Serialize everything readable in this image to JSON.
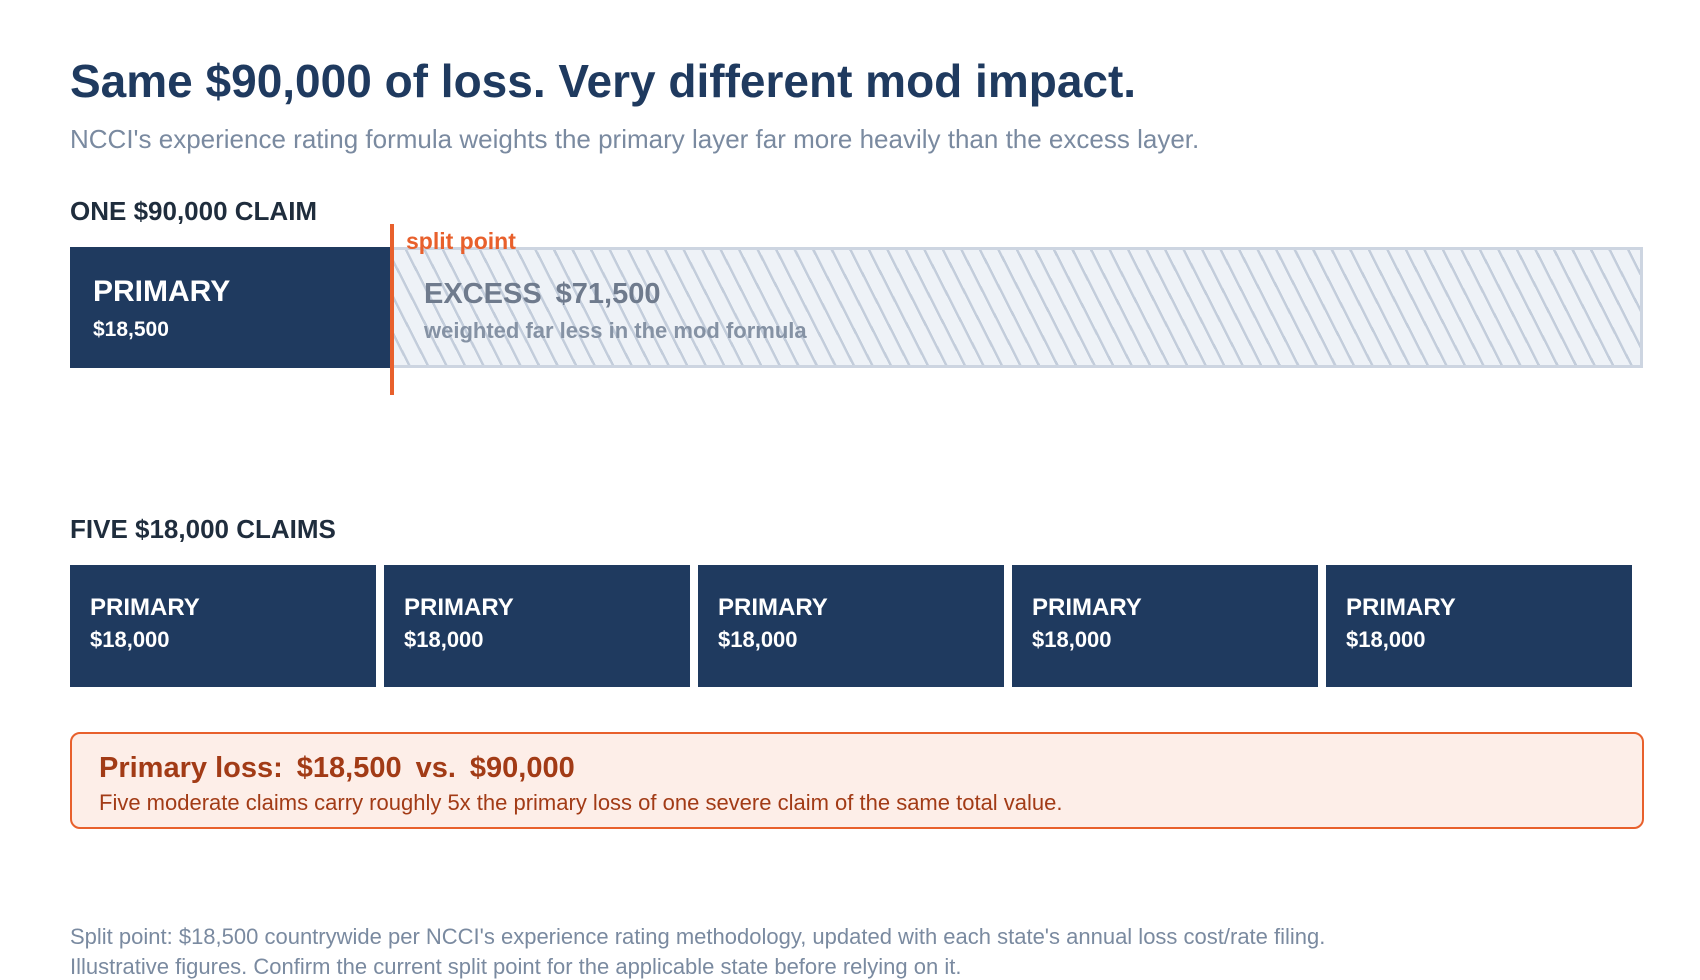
{
  "header": {
    "title": "Same $90,000 of loss. Very different mod impact.",
    "subtitle": "NCCI's experience rating formula weights the primary layer far more heavily than the excess layer."
  },
  "single_claim": {
    "section_label": "ONE $90,000 CLAIM",
    "primary": {
      "label": "PRIMARY",
      "amount": "$18,500",
      "value": 18500
    },
    "excess": {
      "label": "EXCESS",
      "amount": "$71,500",
      "value": 71500,
      "note": "weighted far less in the mod formula"
    },
    "split_label": "split point"
  },
  "five_claims": {
    "section_label": "FIVE $18,000 CLAIMS",
    "claims": [
      {
        "label": "PRIMARY",
        "amount": "$18,000"
      },
      {
        "label": "PRIMARY",
        "amount": "$18,000"
      },
      {
        "label": "PRIMARY",
        "amount": "$18,000"
      },
      {
        "label": "PRIMARY",
        "amount": "$18,000"
      },
      {
        "label": "PRIMARY",
        "amount": "$18,000"
      }
    ]
  },
  "callout": {
    "prefix": "Primary loss:",
    "value_a": "$18,500",
    "vs": "vs.",
    "value_b": "$90,000",
    "body": "Five moderate claims carry roughly 5x the primary loss of one severe claim of the same total value."
  },
  "footnotes": [
    "Split point: $18,500 countrywide per NCCI's experience rating methodology, updated with each state's annual loss cost/rate filing.",
    "Illustrative figures. Confirm the current split point for the applicable state before relying on it."
  ],
  "colors": {
    "navy": "#1f3a5f",
    "accent_orange": "#e8602c",
    "excess_fill": "#eef2f7",
    "callout_fill": "#fdeee8",
    "callout_text": "#a23b16"
  }
}
